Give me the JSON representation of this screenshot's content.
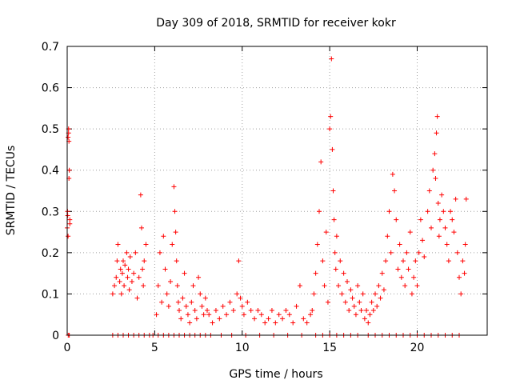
{
  "chart_data": {
    "type": "scatter",
    "title": "Day 309 of 2018, SRMTID for receiver kokr",
    "xlabel": "GPS time / hours",
    "ylabel": "SRMTID / TECUs",
    "xlim": [
      0,
      24
    ],
    "ylim": [
      0,
      0.7
    ],
    "x_ticks": [
      0,
      5,
      10,
      15,
      20
    ],
    "x_tick_labels": [
      "0",
      "5",
      "10",
      "15",
      "20"
    ],
    "y_ticks": [
      0,
      0.1,
      0.2,
      0.3,
      0.4,
      0.5,
      0.6,
      0.7
    ],
    "y_tick_labels": [
      "0",
      "0.1",
      "0.2",
      "0.3",
      "0.4",
      "0.5",
      "0.6",
      "0.7"
    ],
    "grid": true,
    "marker": "plus",
    "marker_color": "#ff0000",
    "series": [
      {
        "name": "SRMTID",
        "x": [
          0.0,
          0.02,
          0.05,
          0.08,
          0.1,
          0.12,
          0.15,
          0.05,
          0.1,
          0.15,
          0.03,
          0.08,
          0.12,
          0.06,
          2.6,
          2.7,
          2.8,
          2.85,
          2.9,
          3.0,
          3.05,
          3.1,
          3.15,
          3.2,
          3.25,
          3.3,
          3.4,
          3.45,
          3.5,
          3.55,
          3.6,
          3.7,
          3.8,
          3.9,
          4.0,
          4.1,
          4.2,
          4.25,
          4.3,
          4.35,
          4.4,
          4.5,
          2.6,
          2.9,
          3.2,
          3.5,
          3.8,
          4.1,
          4.4,
          4.7,
          4.9,
          5.1,
          5.2,
          5.3,
          5.4,
          5.5,
          5.6,
          5.7,
          5.8,
          5.9,
          6.0,
          6.1,
          6.15,
          6.2,
          6.25,
          6.3,
          6.35,
          6.4,
          6.5,
          6.6,
          6.7,
          6.8,
          6.9,
          7.0,
          7.1,
          7.2,
          7.3,
          7.4,
          7.5,
          7.6,
          7.7,
          7.8,
          7.9,
          8.0,
          5.2,
          5.5,
          5.8,
          6.1,
          6.4,
          6.7,
          7.0,
          7.3,
          7.6,
          7.9,
          8.1,
          8.3,
          8.5,
          8.7,
          8.9,
          9.1,
          9.3,
          9.5,
          9.7,
          9.8,
          9.9,
          10.0,
          10.1,
          10.3,
          10.5,
          10.7,
          10.9,
          11.1,
          11.3,
          11.5,
          11.7,
          11.9,
          12.1,
          12.3,
          12.5,
          12.7,
          12.9,
          13.1,
          13.3,
          13.5,
          13.7,
          13.9,
          8.2,
          8.8,
          9.4,
          10.2,
          11.0,
          11.8,
          12.6,
          13.4,
          14.0,
          14.1,
          14.2,
          14.3,
          14.4,
          14.5,
          14.6,
          14.7,
          14.8,
          14.9,
          15.0,
          15.05,
          15.1,
          15.15,
          15.2,
          15.25,
          15.3,
          15.35,
          15.4,
          15.5,
          15.6,
          15.7,
          15.8,
          15.9,
          16.0,
          16.1,
          16.2,
          16.3,
          16.4,
          16.5,
          16.6,
          16.7,
          16.8,
          16.9,
          14.2,
          14.6,
          15.0,
          15.4,
          15.8,
          16.2,
          16.6,
          17.0,
          17.1,
          17.2,
          17.3,
          17.4,
          17.5,
          17.6,
          17.7,
          17.8,
          17.9,
          18.0,
          18.1,
          18.2,
          18.3,
          18.4,
          18.5,
          18.6,
          18.7,
          18.8,
          18.9,
          19.0,
          19.1,
          19.2,
          19.3,
          19.4,
          19.5,
          19.6,
          19.7,
          19.8,
          19.9,
          20.0,
          20.1,
          20.2,
          20.3,
          20.4,
          17.2,
          17.6,
          18.0,
          18.4,
          18.8,
          19.2,
          19.6,
          20.0,
          20.4,
          20.6,
          20.7,
          20.8,
          20.9,
          21.0,
          21.05,
          21.1,
          21.15,
          21.2,
          21.25,
          21.3,
          21.4,
          21.5,
          21.6,
          21.7,
          21.8,
          21.9,
          22.0,
          22.1,
          22.2,
          22.3,
          22.4,
          22.5,
          22.6,
          22.7,
          22.75,
          22.8,
          20.8,
          21.2,
          21.6,
          22.0,
          22.4
        ],
        "y": [
          0.26,
          0.3,
          0.48,
          0.5,
          0.47,
          0.4,
          0.28,
          0.24,
          0.38,
          0.27,
          0.29,
          0.49,
          0.0,
          0.0,
          0.1,
          0.12,
          0.14,
          0.18,
          0.22,
          0.13,
          0.16,
          0.1,
          0.15,
          0.18,
          0.12,
          0.17,
          0.2,
          0.14,
          0.16,
          0.11,
          0.19,
          0.13,
          0.15,
          0.2,
          0.09,
          0.14,
          0.34,
          0.26,
          0.16,
          0.12,
          0.18,
          0.22,
          0.0,
          0.0,
          0.0,
          0.0,
          0.0,
          0.0,
          0.0,
          0.0,
          0.0,
          0.05,
          0.12,
          0.2,
          0.08,
          0.24,
          0.16,
          0.1,
          0.07,
          0.13,
          0.22,
          0.36,
          0.3,
          0.25,
          0.18,
          0.12,
          0.08,
          0.06,
          0.04,
          0.09,
          0.15,
          0.07,
          0.05,
          0.03,
          0.08,
          0.12,
          0.06,
          0.04,
          0.14,
          0.1,
          0.07,
          0.05,
          0.09,
          0.06,
          0.0,
          0.0,
          0.0,
          0.0,
          0.0,
          0.0,
          0.0,
          0.0,
          0.0,
          0.0,
          0.05,
          0.03,
          0.06,
          0.04,
          0.07,
          0.05,
          0.08,
          0.06,
          0.1,
          0.18,
          0.09,
          0.07,
          0.05,
          0.08,
          0.06,
          0.04,
          0.06,
          0.05,
          0.03,
          0.04,
          0.06,
          0.03,
          0.05,
          0.04,
          0.06,
          0.05,
          0.03,
          0.07,
          0.12,
          0.04,
          0.03,
          0.05,
          0.0,
          0.0,
          0.0,
          0.0,
          0.0,
          0.0,
          0.0,
          0.0,
          0.06,
          0.1,
          0.15,
          0.22,
          0.3,
          0.42,
          0.18,
          0.12,
          0.25,
          0.08,
          0.5,
          0.53,
          0.67,
          0.45,
          0.35,
          0.28,
          0.2,
          0.16,
          0.24,
          0.12,
          0.18,
          0.1,
          0.15,
          0.08,
          0.13,
          0.06,
          0.11,
          0.09,
          0.07,
          0.05,
          0.12,
          0.08,
          0.06,
          0.1,
          0.0,
          0.0,
          0.0,
          0.0,
          0.0,
          0.0,
          0.0,
          0.04,
          0.06,
          0.03,
          0.05,
          0.08,
          0.06,
          0.1,
          0.07,
          0.12,
          0.09,
          0.15,
          0.11,
          0.18,
          0.24,
          0.3,
          0.2,
          0.39,
          0.35,
          0.28,
          0.16,
          0.22,
          0.14,
          0.18,
          0.12,
          0.2,
          0.16,
          0.25,
          0.1,
          0.14,
          0.18,
          0.12,
          0.2,
          0.28,
          0.23,
          0.19,
          0.0,
          0.0,
          0.0,
          0.0,
          0.0,
          0.0,
          0.0,
          0.0,
          0.0,
          0.3,
          0.35,
          0.26,
          0.4,
          0.44,
          0.38,
          0.49,
          0.53,
          0.32,
          0.24,
          0.28,
          0.34,
          0.3,
          0.26,
          0.22,
          0.18,
          0.3,
          0.28,
          0.25,
          0.33,
          0.2,
          0.14,
          0.1,
          0.18,
          0.15,
          0.22,
          0.33,
          0.0,
          0.0,
          0.0,
          0.0,
          0.0
        ]
      }
    ]
  }
}
